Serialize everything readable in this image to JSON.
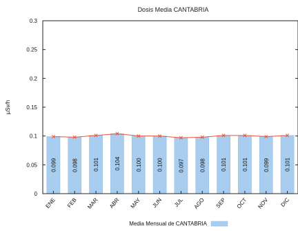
{
  "chart_data": {
    "type": "bar",
    "title": "Dosis Media CANTABRIA",
    "ylabel": "µSv/h",
    "xlabel": "",
    "ylim": [
      0,
      0.3
    ],
    "yticks": [
      "0",
      "0.05",
      "0.1",
      "0.15",
      "0.2",
      "0.25",
      "0.3"
    ],
    "categories": [
      "ENE",
      "FEB",
      "MAR",
      "ABR",
      "MAY",
      "JUN",
      "JUL",
      "AGO",
      "SEP",
      "OCT",
      "NOV",
      "DIC"
    ],
    "series": [
      {
        "name": "Media Mensual de CANTABRIA",
        "values": [
          0.099,
          0.098,
          0.101,
          0.104,
          0.1,
          0.1,
          0.097,
          0.098,
          0.101,
          0.101,
          0.099,
          0.101
        ],
        "labels": [
          "0.099",
          "0.098",
          "0.101",
          "0.104",
          "0.100",
          "0.100",
          "0.097",
          "0.098",
          "0.101",
          "0.101",
          "0.099",
          "0.101"
        ]
      }
    ],
    "overlay_line": {
      "values": [
        0.099,
        0.098,
        0.101,
        0.104,
        0.1,
        0.1,
        0.097,
        0.098,
        0.101,
        0.101,
        0.099,
        0.101
      ],
      "marker": "x"
    },
    "legend_position": "bottom-center",
    "grid": false,
    "colors": {
      "bar": "#a8cdee",
      "bar_edge": "#8fb8dc",
      "line": "#e8573c",
      "axis": "#222222"
    }
  }
}
